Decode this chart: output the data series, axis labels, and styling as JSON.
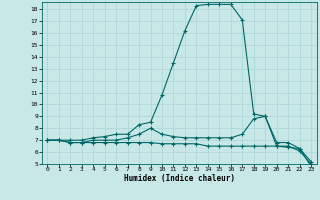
{
  "xlabel": "Humidex (Indice chaleur)",
  "bg_color": "#c8e8e8",
  "line_color": "#006666",
  "grid_color": "#b0d8d8",
  "xlim": [
    -0.5,
    23.5
  ],
  "ylim": [
    5,
    18.6
  ],
  "xticks": [
    0,
    1,
    2,
    3,
    4,
    5,
    6,
    7,
    8,
    9,
    10,
    11,
    12,
    13,
    14,
    15,
    16,
    17,
    18,
    19,
    20,
    21,
    22,
    23
  ],
  "yticks": [
    5,
    6,
    7,
    8,
    9,
    10,
    11,
    12,
    13,
    14,
    15,
    16,
    17,
    18
  ],
  "line1_x": [
    0,
    1,
    2,
    3,
    4,
    5,
    6,
    7,
    8,
    9,
    10,
    11,
    12,
    13,
    14,
    15,
    16,
    17,
    18,
    19,
    20,
    21,
    22,
    23
  ],
  "line1_y": [
    7.0,
    7.0,
    7.0,
    7.0,
    7.2,
    7.3,
    7.5,
    7.5,
    8.3,
    8.5,
    10.8,
    13.5,
    16.2,
    18.3,
    18.4,
    18.4,
    18.4,
    17.1,
    9.2,
    9.0,
    6.5,
    6.5,
    6.1,
    5.0
  ],
  "line2_x": [
    0,
    1,
    2,
    3,
    4,
    5,
    6,
    7,
    8,
    9,
    10,
    11,
    12,
    13,
    14,
    15,
    16,
    17,
    18,
    19,
    20,
    21,
    22,
    23
  ],
  "line2_y": [
    7.0,
    7.0,
    6.8,
    6.8,
    7.0,
    7.0,
    7.0,
    7.2,
    7.5,
    8.0,
    7.5,
    7.3,
    7.2,
    7.2,
    7.2,
    7.2,
    7.2,
    7.5,
    8.8,
    9.0,
    6.8,
    6.8,
    6.3,
    5.2
  ],
  "line3_x": [
    0,
    1,
    2,
    3,
    4,
    5,
    6,
    7,
    8,
    9,
    10,
    11,
    12,
    13,
    14,
    15,
    16,
    17,
    18,
    19,
    20,
    21,
    22,
    23
  ],
  "line3_y": [
    7.0,
    7.0,
    6.8,
    6.8,
    6.8,
    6.8,
    6.8,
    6.8,
    6.8,
    6.8,
    6.7,
    6.7,
    6.7,
    6.7,
    6.5,
    6.5,
    6.5,
    6.5,
    6.5,
    6.5,
    6.5,
    6.4,
    6.3,
    4.8
  ]
}
